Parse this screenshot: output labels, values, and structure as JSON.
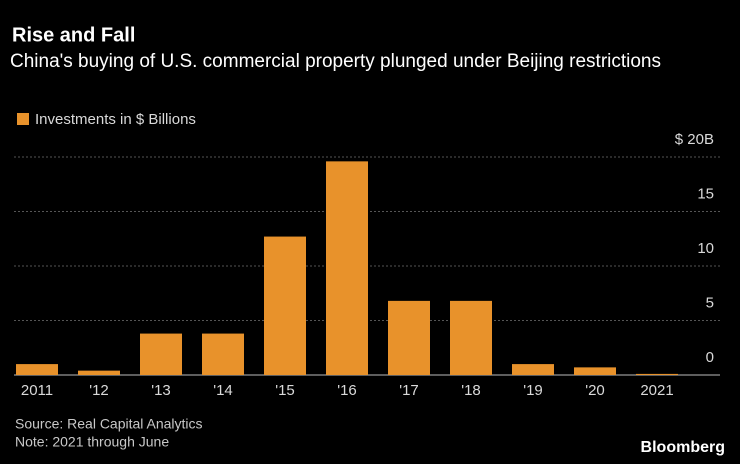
{
  "chart_data": {
    "type": "bar",
    "title": "Rise and Fall",
    "subtitle": "China's buying of U.S. commercial property plunged under Beijing restrictions",
    "categories": [
      "2011",
      "'12",
      "'13",
      "'14",
      "'15",
      "'16",
      "'17",
      "'18",
      "'19",
      "'20",
      "2021"
    ],
    "series": [
      {
        "name": "Investments in $ Billions",
        "color": "#e8922b",
        "values": [
          1.0,
          0.4,
          3.8,
          3.8,
          12.7,
          19.6,
          6.8,
          6.8,
          1.0,
          0.7,
          0.1
        ]
      }
    ],
    "ylim": [
      0,
      20
    ],
    "yticks": [
      0,
      5,
      10,
      15,
      {
        "value": 20,
        "label": "$ 20B"
      }
    ],
    "grid": true,
    "source": "Source: Real Capital Analytics",
    "note": "Note: 2021 through June",
    "brand": "Bloomberg"
  }
}
